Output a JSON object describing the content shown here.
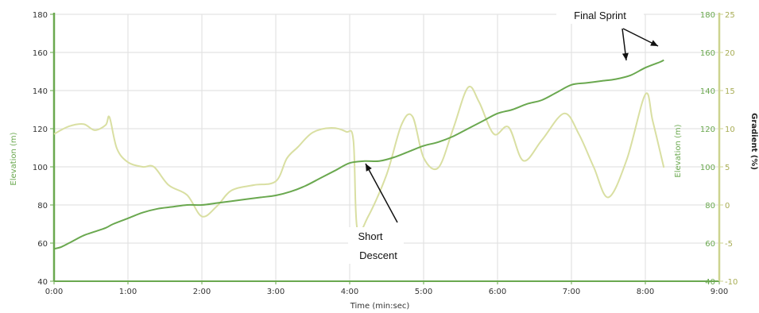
{
  "chart_data": {
    "type": "line",
    "xlabel": "Time (min:sec)",
    "x_ticks": [
      "0:00",
      "1:00",
      "2:00",
      "3:00",
      "4:00",
      "5:00",
      "6:00",
      "7:00",
      "8:00",
      "9:00"
    ],
    "xlim": [
      0,
      9
    ],
    "left_axis": {
      "label": "Elevation (m)",
      "ylim": [
        40,
        180
      ],
      "ticks": [
        "40",
        "60",
        "80",
        "100",
        "120",
        "140",
        "160",
        "180"
      ]
    },
    "right_axes": [
      {
        "label": "Elevation (m)",
        "ylim": [
          40,
          180
        ],
        "ticks": [
          "40",
          "60",
          "80",
          "100",
          "120",
          "140",
          "160",
          "180"
        ]
      },
      {
        "label": "Gradient (%)",
        "ylim": [
          -10,
          25
        ],
        "ticks": [
          "-10",
          "-5",
          "0",
          "5",
          "10",
          "15",
          "20",
          "25"
        ]
      }
    ],
    "grid": true,
    "series": [
      {
        "axis": "elevation",
        "color": "#6aa84f",
        "x": [
          0.0,
          0.1,
          0.25,
          0.4,
          0.55,
          0.7,
          0.8,
          1.0,
          1.2,
          1.4,
          1.6,
          1.8,
          2.0,
          2.2,
          2.4,
          2.6,
          2.8,
          3.0,
          3.2,
          3.4,
          3.6,
          3.8,
          4.0,
          4.2,
          4.4,
          4.6,
          4.8,
          5.0,
          5.2,
          5.4,
          5.6,
          5.8,
          6.0,
          6.2,
          6.4,
          6.6,
          6.8,
          7.0,
          7.2,
          7.4,
          7.6,
          7.8,
          8.0,
          8.2,
          8.25
        ],
        "y": [
          57,
          58,
          61,
          64,
          66,
          68,
          70,
          73,
          76,
          78,
          79,
          80,
          80,
          81,
          82,
          83,
          84,
          85,
          87,
          90,
          94,
          98,
          102,
          103,
          103,
          105,
          108,
          111,
          113,
          116,
          120,
          124,
          128,
          130,
          133,
          135,
          139,
          143,
          144,
          145,
          146,
          148,
          152,
          155,
          156
        ]
      },
      {
        "axis": "gradient",
        "color": "#d9dfa2",
        "x": [
          0.0,
          0.2,
          0.4,
          0.55,
          0.7,
          0.75,
          0.85,
          1.0,
          1.2,
          1.35,
          1.55,
          1.8,
          2.0,
          2.2,
          2.4,
          2.7,
          3.0,
          3.15,
          3.3,
          3.5,
          3.75,
          3.95,
          4.05,
          4.1,
          4.25,
          4.5,
          4.7,
          4.85,
          5.0,
          5.2,
          5.4,
          5.6,
          5.75,
          5.95,
          6.15,
          6.35,
          6.6,
          6.9,
          7.1,
          7.3,
          7.5,
          7.75,
          8.0,
          8.1,
          8.25
        ],
        "y": [
          9.3,
          10.3,
          10.6,
          9.8,
          10.5,
          11.5,
          7.4,
          5.6,
          5.0,
          5.0,
          2.6,
          1.3,
          -1.5,
          -0.2,
          1.9,
          2.6,
          3.1,
          6.1,
          7.6,
          9.5,
          10.1,
          9.6,
          8.5,
          -3.0,
          -1.5,
          4.0,
          10.5,
          11.6,
          6.2,
          4.9,
          10.0,
          15.4,
          13.5,
          9.3,
          10.2,
          5.8,
          8.5,
          12.0,
          9.3,
          5.0,
          1.0,
          6.0,
          14.5,
          11.0,
          4.9
        ]
      }
    ],
    "annotations": [
      {
        "text": "Final Sprint"
      },
      {
        "text": "Short"
      },
      {
        "text": "Descent"
      }
    ]
  }
}
